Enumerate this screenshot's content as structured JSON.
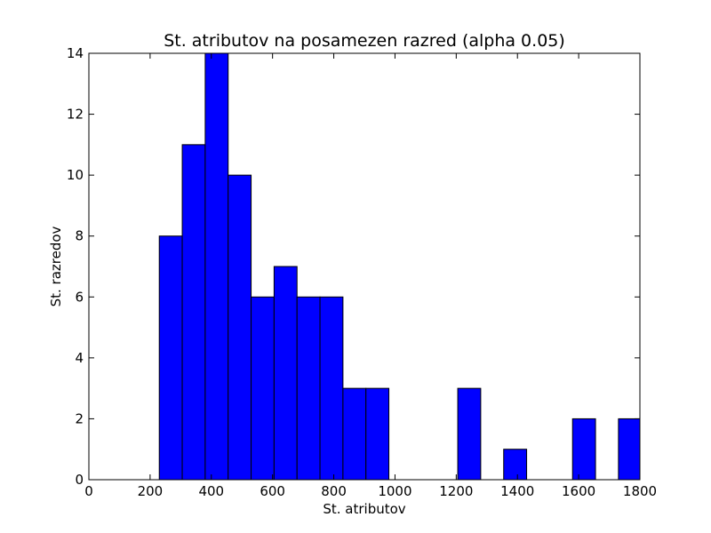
{
  "chart_data": {
    "type": "bar",
    "title": "St. atributov na posamezen razred (alpha 0.05)",
    "xlabel": "St. atributov",
    "ylabel": "St. razredov",
    "xlim": [
      0,
      1800
    ],
    "ylim": [
      0,
      14
    ],
    "x_ticks": [
      0,
      200,
      400,
      600,
      800,
      1000,
      1200,
      1400,
      1600,
      1800
    ],
    "y_ticks": [
      0,
      2,
      4,
      6,
      8,
      10,
      12,
      14
    ],
    "bar_color": "#0000ff",
    "bins": [
      {
        "start": 230,
        "end": 305,
        "count": 8
      },
      {
        "start": 305,
        "end": 380,
        "count": 11
      },
      {
        "start": 380,
        "end": 455,
        "count": 14
      },
      {
        "start": 455,
        "end": 530,
        "count": 10
      },
      {
        "start": 530,
        "end": 605,
        "count": 6
      },
      {
        "start": 605,
        "end": 680,
        "count": 7
      },
      {
        "start": 680,
        "end": 755,
        "count": 6
      },
      {
        "start": 755,
        "end": 830,
        "count": 6
      },
      {
        "start": 830,
        "end": 905,
        "count": 3
      },
      {
        "start": 905,
        "end": 980,
        "count": 3
      },
      {
        "start": 980,
        "end": 1055,
        "count": 0
      },
      {
        "start": 1055,
        "end": 1130,
        "count": 0
      },
      {
        "start": 1130,
        "end": 1205,
        "count": 0
      },
      {
        "start": 1205,
        "end": 1280,
        "count": 3
      },
      {
        "start": 1280,
        "end": 1355,
        "count": 0
      },
      {
        "start": 1355,
        "end": 1430,
        "count": 1
      },
      {
        "start": 1430,
        "end": 1505,
        "count": 0
      },
      {
        "start": 1505,
        "end": 1580,
        "count": 0
      },
      {
        "start": 1580,
        "end": 1655,
        "count": 2
      },
      {
        "start": 1655,
        "end": 1730,
        "count": 0
      },
      {
        "start": 1730,
        "end": 1805,
        "count": 2
      }
    ]
  }
}
